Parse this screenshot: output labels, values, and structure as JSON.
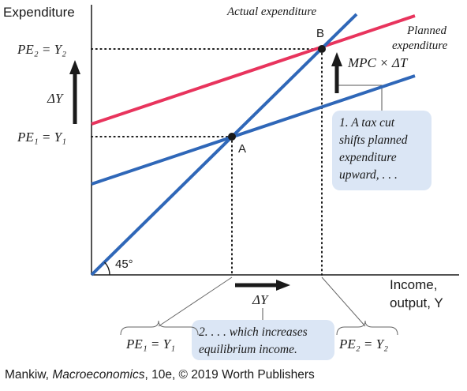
{
  "axes": {
    "y_title": "Expenditure",
    "x_title_line1": "Income,",
    "x_title_line2": "output, Y"
  },
  "lines": {
    "actual_label": "Actual expenditure",
    "planned_label_line1": "Planned",
    "planned_label_line2": "expenditure",
    "actual_color": "#2f67b8",
    "planned_color": "#e8345d"
  },
  "angle_label": "45°",
  "points": {
    "a": "A",
    "b": "B"
  },
  "y_ticks": {
    "pe2": "PE₂ = Y₂",
    "pe1": "PE₁ = Y₁"
  },
  "delta_y_vertical": "ΔY",
  "delta_y_horizontal": "ΔY",
  "mpc_label": "MPC × ΔT",
  "callout_1": [
    "1. A tax cut",
    "shifts planned",
    "expenditure",
    "upward, . . ."
  ],
  "callout_2": [
    "2. . . . which increases",
    "equilibrium income."
  ],
  "x_brace_1": "PE₁ = Y₁",
  "x_brace_2": "PE₂ = Y₂",
  "credit": {
    "author": "Mankiw, ",
    "book": "Macroeconomics",
    "rest": ", 10e, © 2019 Worth Publishers"
  }
}
